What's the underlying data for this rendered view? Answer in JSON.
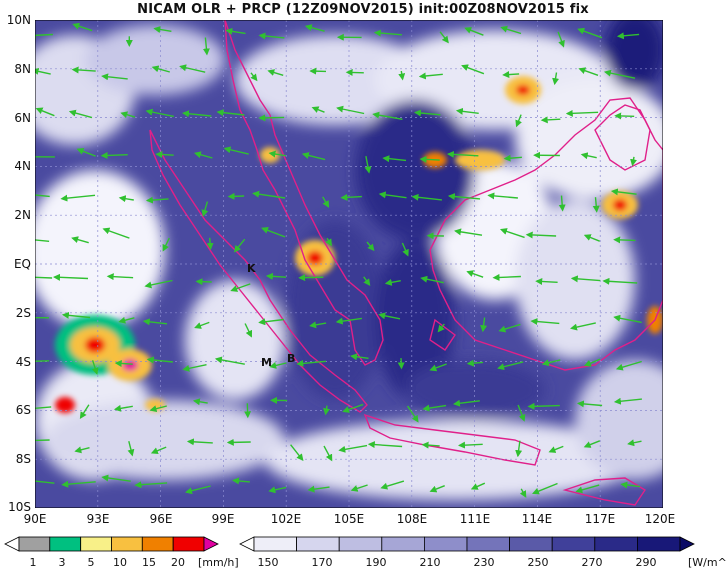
{
  "title": "NICAM OLR + PRCP (12Z09NOV2015) init:00Z08NOV2015 fix",
  "map": {
    "lat_labels": [
      "10N",
      "8N",
      "6N",
      "4N",
      "2N",
      "EQ",
      "2S",
      "4S",
      "6S",
      "8S",
      "10S"
    ],
    "lon_labels": [
      "90E",
      "93E",
      "96E",
      "99E",
      "102E",
      "105E",
      "108E",
      "111E",
      "114E",
      "117E",
      "120E"
    ],
    "lon_range": [
      90,
      120
    ],
    "lat_range": [
      -10,
      10
    ],
    "grid": "dotted",
    "station_markers": [
      "K",
      "M",
      "B"
    ]
  },
  "precip_colorbar": {
    "ticks": [
      "1",
      "3",
      "5",
      "10",
      "15",
      "20"
    ],
    "unit": "[mm/h]",
    "colors": [
      "#ffffff",
      "#a0a0a0",
      "#00c080",
      "#f8f088",
      "#f8c040",
      "#f08000",
      "#f00000",
      "#e000a0"
    ]
  },
  "olr_colorbar": {
    "ticks": [
      "150",
      "170",
      "190",
      "210",
      "230",
      "250",
      "270",
      "290"
    ],
    "unit": "[W/m^2]",
    "colors": [
      "#ffffff",
      "#eeeef8",
      "#d6d6ee",
      "#bebee2",
      "#a6a6d6",
      "#8e8eca",
      "#7474ba",
      "#5a5aa8",
      "#40409a",
      "#2a2a88",
      "#181878",
      "#0a0a66"
    ]
  },
  "colors": {
    "land_outline": "#e0208a",
    "wind_vector": "#30c030",
    "olr_dark": "#1a1a7a"
  }
}
